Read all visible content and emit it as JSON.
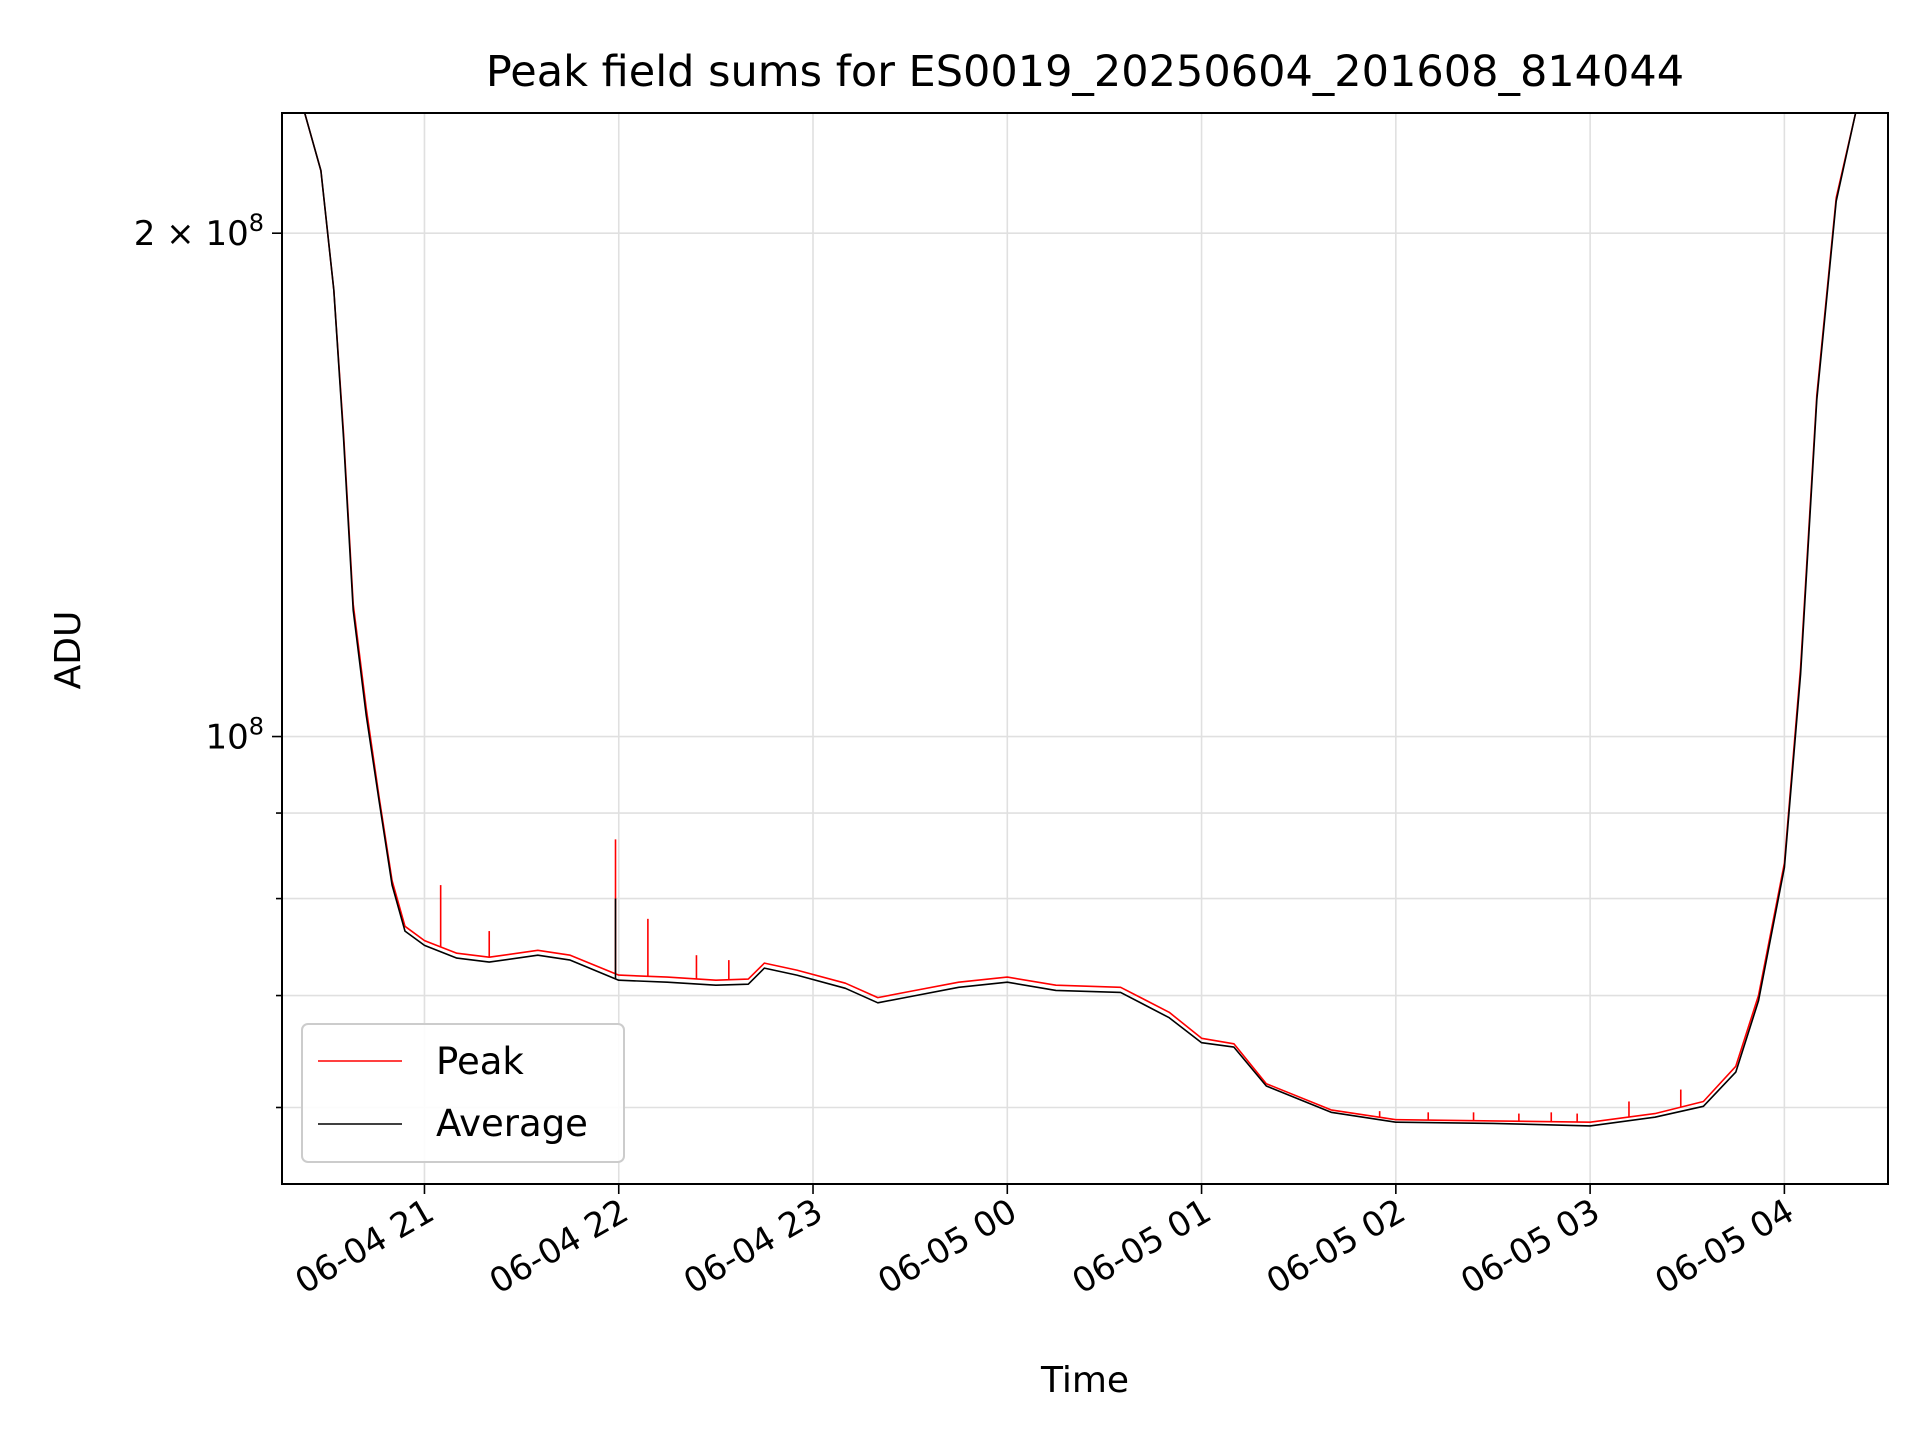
{
  "chart_data": {
    "type": "line",
    "title": "Peak field sums for ES0019_20250604_201608_814044",
    "xlabel": "Time",
    "ylabel": "ADU",
    "yscale": "log",
    "xlim": [
      "2025-06-04 20:16",
      "2025-06-05 04:32"
    ],
    "ylim": [
      54000000,
      236000000
    ],
    "x_ticks": [
      {
        "x": "2025-06-04 21:00",
        "label": "06-04 21"
      },
      {
        "x": "2025-06-04 22:00",
        "label": "06-04 22"
      },
      {
        "x": "2025-06-04 23:00",
        "label": "06-04 23"
      },
      {
        "x": "2025-06-05 00:00",
        "label": "06-05 00"
      },
      {
        "x": "2025-06-05 01:00",
        "label": "06-05 01"
      },
      {
        "x": "2025-06-05 02:00",
        "label": "06-05 02"
      },
      {
        "x": "2025-06-05 03:00",
        "label": "06-05 03"
      },
      {
        "x": "2025-06-05 04:00",
        "label": "06-05 04"
      }
    ],
    "y_ticks": [
      {
        "y": 200000000,
        "base": "2 × 10",
        "exp": "8"
      },
      {
        "y": 100000000,
        "base": "10",
        "exp": "8"
      }
    ],
    "y_minor_ticks": [
      90000000,
      80000000,
      70000000,
      60000000
    ],
    "grid": true,
    "legend_position": "lower-left",
    "series": [
      {
        "name": "Peak",
        "color": "#ff0000",
        "points": [
          [
            "2025-06-04 20:16",
            236000000
          ],
          [
            "2025-06-04 20:23",
            236000000
          ],
          [
            "2025-06-04 20:28",
            218000000
          ],
          [
            "2025-06-04 20:32",
            185000000
          ],
          [
            "2025-06-04 20:35",
            152000000
          ],
          [
            "2025-06-04 20:38",
            120000000
          ],
          [
            "2025-06-04 20:42",
            104000000
          ],
          [
            "2025-06-04 20:46",
            92000000
          ],
          [
            "2025-06-04 20:50",
            82000000
          ],
          [
            "2025-06-04 20:54",
            77000000
          ],
          [
            "2025-06-04 21:00",
            75500000
          ],
          [
            "2025-06-04 21:10",
            74200000
          ],
          [
            "2025-06-04 21:20",
            73800000
          ],
          [
            "2025-06-04 21:35",
            74500000
          ],
          [
            "2025-06-04 21:45",
            74000000
          ],
          [
            "2025-06-04 22:00",
            72000000
          ],
          [
            "2025-06-04 22:15",
            71800000
          ],
          [
            "2025-06-04 22:30",
            71500000
          ],
          [
            "2025-06-04 22:40",
            71600000
          ],
          [
            "2025-06-04 22:45",
            73200000
          ],
          [
            "2025-06-04 22:55",
            72500000
          ],
          [
            "2025-06-04 23:10",
            71200000
          ],
          [
            "2025-06-04 23:20",
            69800000
          ],
          [
            "2025-06-04 23:30",
            70400000
          ],
          [
            "2025-06-04 23:45",
            71300000
          ],
          [
            "2025-06-05 00:00",
            71800000
          ],
          [
            "2025-06-05 00:15",
            71000000
          ],
          [
            "2025-06-05 00:35",
            70800000
          ],
          [
            "2025-06-05 00:50",
            68400000
          ],
          [
            "2025-06-05 01:00",
            66000000
          ],
          [
            "2025-06-05 01:10",
            65500000
          ],
          [
            "2025-06-05 01:20",
            62000000
          ],
          [
            "2025-06-05 01:40",
            59800000
          ],
          [
            "2025-06-05 02:00",
            59000000
          ],
          [
            "2025-06-05 02:30",
            58900000
          ],
          [
            "2025-06-05 03:00",
            58800000
          ],
          [
            "2025-06-05 03:20",
            59500000
          ],
          [
            "2025-06-05 03:35",
            60500000
          ],
          [
            "2025-06-05 03:45",
            63500000
          ],
          [
            "2025-06-05 03:52",
            70000000
          ],
          [
            "2025-06-05 04:00",
            84000000
          ],
          [
            "2025-06-05 04:05",
            110000000
          ],
          [
            "2025-06-05 04:10",
            160000000
          ],
          [
            "2025-06-05 04:16",
            210000000
          ],
          [
            "2025-06-05 04:22",
            236000000
          ],
          [
            "2025-06-05 04:32",
            236000000
          ]
        ],
        "spikes": [
          [
            "2025-06-04 21:05",
            81500000
          ],
          [
            "2025-06-04 21:20",
            76500000
          ],
          [
            "2025-06-04 21:59",
            86800000
          ],
          [
            "2025-06-04 22:09",
            77800000
          ],
          [
            "2025-06-04 22:24",
            74000000
          ],
          [
            "2025-06-04 22:34",
            73500000
          ],
          [
            "2025-06-05 01:55",
            59700000
          ],
          [
            "2025-06-05 02:10",
            59600000
          ],
          [
            "2025-06-05 02:24",
            59600000
          ],
          [
            "2025-06-05 02:38",
            59500000
          ],
          [
            "2025-06-05 02:48",
            59600000
          ],
          [
            "2025-06-05 02:56",
            59500000
          ],
          [
            "2025-06-05 03:12",
            60500000
          ],
          [
            "2025-06-05 03:28",
            61500000
          ]
        ]
      },
      {
        "name": "Average",
        "color": "#000000",
        "points": [
          [
            "2025-06-04 20:16",
            236000000
          ],
          [
            "2025-06-04 20:23",
            236000000
          ],
          [
            "2025-06-04 20:28",
            218000000
          ],
          [
            "2025-06-04 20:32",
            185000000
          ],
          [
            "2025-06-04 20:35",
            151000000
          ],
          [
            "2025-06-04 20:38",
            119000000
          ],
          [
            "2025-06-04 20:42",
            103000000
          ],
          [
            "2025-06-04 20:46",
            91500000
          ],
          [
            "2025-06-04 20:50",
            81500000
          ],
          [
            "2025-06-04 20:54",
            76500000
          ],
          [
            "2025-06-04 21:00",
            75000000
          ],
          [
            "2025-06-04 21:10",
            73700000
          ],
          [
            "2025-06-04 21:20",
            73300000
          ],
          [
            "2025-06-04 21:35",
            74000000
          ],
          [
            "2025-06-04 21:45",
            73500000
          ],
          [
            "2025-06-04 22:00",
            71500000
          ],
          [
            "2025-06-04 22:15",
            71300000
          ],
          [
            "2025-06-04 22:30",
            71000000
          ],
          [
            "2025-06-04 22:40",
            71100000
          ],
          [
            "2025-06-04 22:45",
            72700000
          ],
          [
            "2025-06-04 22:55",
            72000000
          ],
          [
            "2025-06-04 23:10",
            70700000
          ],
          [
            "2025-06-04 23:20",
            69300000
          ],
          [
            "2025-06-04 23:30",
            69900000
          ],
          [
            "2025-06-04 23:45",
            70800000
          ],
          [
            "2025-06-05 00:00",
            71300000
          ],
          [
            "2025-06-05 00:15",
            70500000
          ],
          [
            "2025-06-05 00:35",
            70300000
          ],
          [
            "2025-06-05 00:50",
            67900000
          ],
          [
            "2025-06-05 01:00",
            65600000
          ],
          [
            "2025-06-05 01:10",
            65200000
          ],
          [
            "2025-06-05 01:20",
            61800000
          ],
          [
            "2025-06-05 01:40",
            59600000
          ],
          [
            "2025-06-05 02:00",
            58800000
          ],
          [
            "2025-06-05 02:30",
            58700000
          ],
          [
            "2025-06-05 03:00",
            58500000
          ],
          [
            "2025-06-05 03:20",
            59200000
          ],
          [
            "2025-06-05 03:35",
            60100000
          ],
          [
            "2025-06-05 03:45",
            63000000
          ],
          [
            "2025-06-05 03:52",
            69500000
          ],
          [
            "2025-06-05 04:00",
            83500000
          ],
          [
            "2025-06-05 04:05",
            109000000
          ],
          [
            "2025-06-05 04:10",
            159000000
          ],
          [
            "2025-06-05 04:16",
            209000000
          ],
          [
            "2025-06-05 04:22",
            236000000
          ],
          [
            "2025-06-05 04:32",
            236000000
          ]
        ],
        "spikes": [
          [
            "2025-06-04 21:59",
            80000000
          ]
        ]
      }
    ]
  }
}
